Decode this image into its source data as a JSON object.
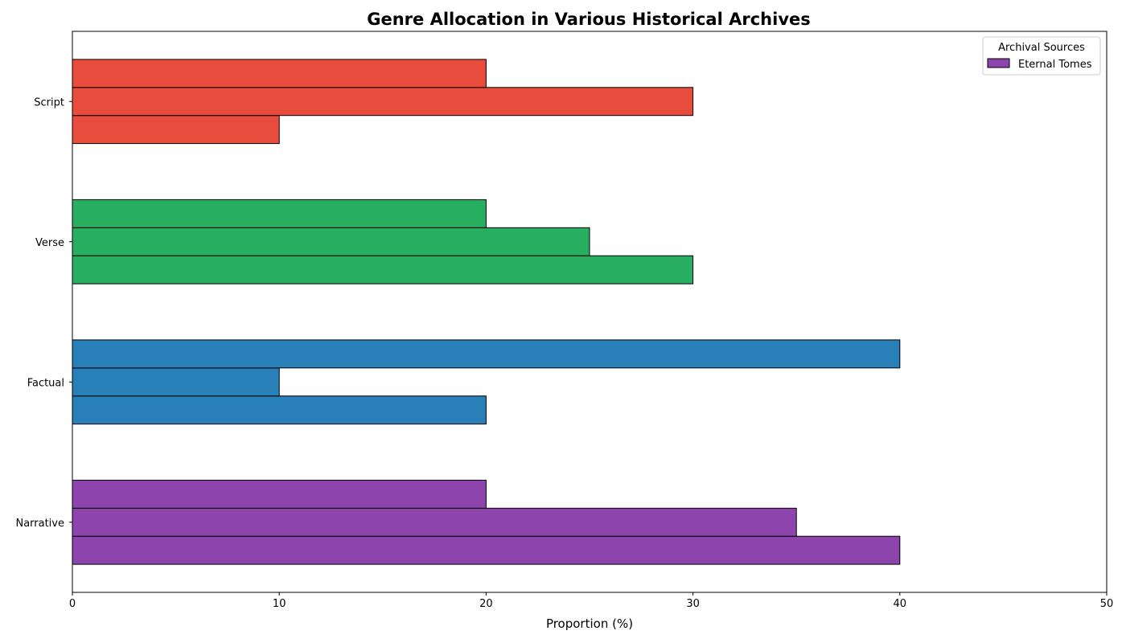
{
  "chart_data": {
    "type": "bar",
    "orientation": "horizontal",
    "title": "Genre Allocation in Various Historical Archives",
    "xlabel": "Proportion (%)",
    "ylabel": "",
    "xlim": [
      0,
      50
    ],
    "xticks": [
      0,
      10,
      20,
      30,
      40,
      50
    ],
    "categories": [
      "Narrative",
      "Factual",
      "Verse",
      "Script"
    ],
    "category_colors": [
      "#8e44ad",
      "#2980b9",
      "#27ae60",
      "#e74c3c"
    ],
    "series": [
      {
        "values": [
          40,
          20,
          30,
          10
        ]
      },
      {
        "values": [
          35,
          10,
          25,
          30
        ]
      },
      {
        "name": "Eternal Tomes",
        "values": [
          20,
          40,
          20,
          20
        ]
      }
    ],
    "legend": {
      "title": "Archival Sources",
      "entries": [
        {
          "label": "Eternal Tomes",
          "color": "#8e44ad"
        }
      ],
      "placement": "top-right"
    },
    "grid": false
  }
}
